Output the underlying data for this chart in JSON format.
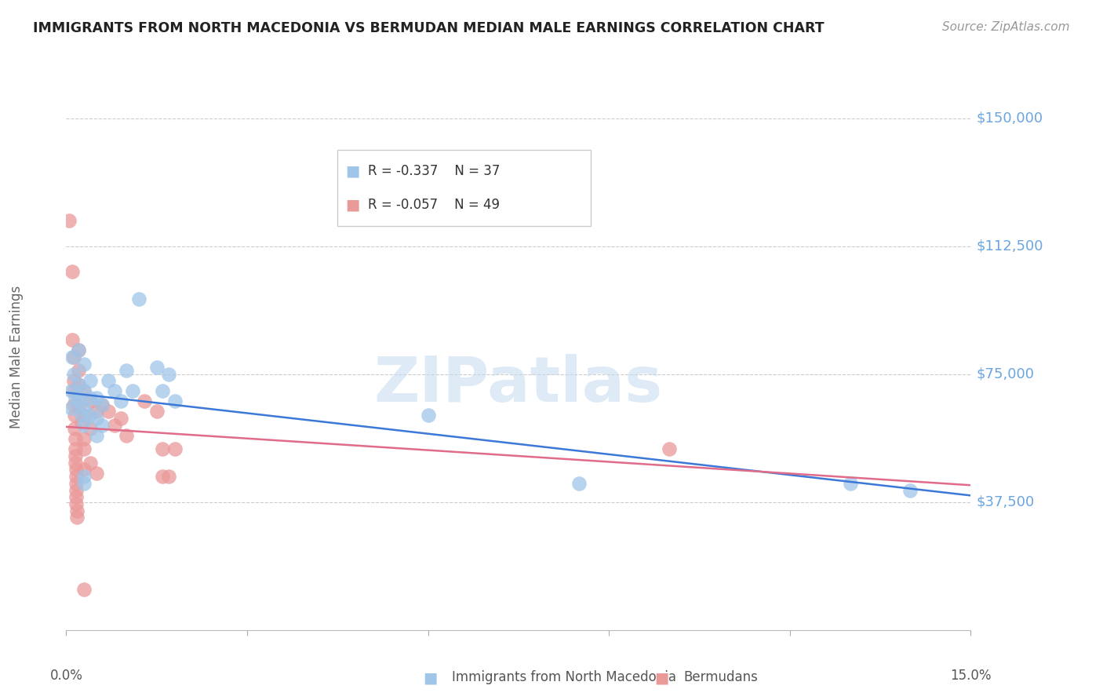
{
  "title": "IMMIGRANTS FROM NORTH MACEDONIA VS BERMUDAN MEDIAN MALE EARNINGS CORRELATION CHART",
  "source": "Source: ZipAtlas.com",
  "ylabel": "Median Male Earnings",
  "xlim": [
    0.0,
    0.15
  ],
  "ylim": [
    0,
    160000
  ],
  "watermark": "ZIPatlas",
  "legend_blue_R": "-0.337",
  "legend_blue_N": "37",
  "legend_pink_R": "-0.057",
  "legend_pink_N": "49",
  "legend_blue_label": "Immigrants from North Macedonia",
  "legend_pink_label": "Bermudans",
  "blue_color": "#9fc5e8",
  "pink_color": "#ea9999",
  "blue_line_color": "#3c78d8",
  "pink_line_color": "#e06c8a",
  "title_color": "#222222",
  "ytick_color": "#6aa5e0",
  "grid_color": "#cccccc",
  "blue_scatter": [
    [
      0.0008,
      70000
    ],
    [
      0.0009,
      65000
    ],
    [
      0.001,
      80000
    ],
    [
      0.0012,
      75000
    ],
    [
      0.0015,
      68000
    ],
    [
      0.002,
      82000
    ],
    [
      0.002,
      72000
    ],
    [
      0.0022,
      67000
    ],
    [
      0.0025,
      63000
    ],
    [
      0.003,
      78000
    ],
    [
      0.003,
      70000
    ],
    [
      0.003,
      65000
    ],
    [
      0.003,
      60000
    ],
    [
      0.003,
      45000
    ],
    [
      0.004,
      73000
    ],
    [
      0.004,
      68000
    ],
    [
      0.004,
      63000
    ],
    [
      0.005,
      68000
    ],
    [
      0.005,
      62000
    ],
    [
      0.005,
      57000
    ],
    [
      0.006,
      66000
    ],
    [
      0.006,
      60000
    ],
    [
      0.007,
      73000
    ],
    [
      0.008,
      70000
    ],
    [
      0.009,
      67000
    ],
    [
      0.01,
      76000
    ],
    [
      0.011,
      70000
    ],
    [
      0.012,
      97000
    ],
    [
      0.015,
      77000
    ],
    [
      0.016,
      70000
    ],
    [
      0.017,
      75000
    ],
    [
      0.018,
      67000
    ],
    [
      0.06,
      63000
    ],
    [
      0.085,
      43000
    ],
    [
      0.13,
      43000
    ],
    [
      0.14,
      41000
    ],
    [
      0.003,
      43000
    ]
  ],
  "pink_scatter": [
    [
      0.0005,
      120000
    ],
    [
      0.001,
      105000
    ],
    [
      0.001,
      85000
    ],
    [
      0.0012,
      80000
    ],
    [
      0.0012,
      73000
    ],
    [
      0.0013,
      70000
    ],
    [
      0.0013,
      66000
    ],
    [
      0.0014,
      63000
    ],
    [
      0.0014,
      59000
    ],
    [
      0.0015,
      56000
    ],
    [
      0.0015,
      53000
    ],
    [
      0.0015,
      51000
    ],
    [
      0.0015,
      49000
    ],
    [
      0.0016,
      47000
    ],
    [
      0.0016,
      45000
    ],
    [
      0.0016,
      43000
    ],
    [
      0.0017,
      41000
    ],
    [
      0.0017,
      39000
    ],
    [
      0.0017,
      37000
    ],
    [
      0.0018,
      35000
    ],
    [
      0.0018,
      33000
    ],
    [
      0.002,
      82000
    ],
    [
      0.002,
      76000
    ],
    [
      0.002,
      72000
    ],
    [
      0.002,
      66000
    ],
    [
      0.0025,
      61000
    ],
    [
      0.003,
      56000
    ],
    [
      0.003,
      70000
    ],
    [
      0.003,
      63000
    ],
    [
      0.003,
      53000
    ],
    [
      0.003,
      47000
    ],
    [
      0.004,
      67000
    ],
    [
      0.004,
      59000
    ],
    [
      0.004,
      49000
    ],
    [
      0.005,
      64000
    ],
    [
      0.005,
      46000
    ],
    [
      0.006,
      66000
    ],
    [
      0.007,
      64000
    ],
    [
      0.008,
      60000
    ],
    [
      0.009,
      62000
    ],
    [
      0.01,
      57000
    ],
    [
      0.013,
      67000
    ],
    [
      0.015,
      64000
    ],
    [
      0.016,
      53000
    ],
    [
      0.016,
      45000
    ],
    [
      0.018,
      53000
    ],
    [
      0.1,
      53000
    ],
    [
      0.003,
      12000
    ],
    [
      0.017,
      45000
    ]
  ]
}
